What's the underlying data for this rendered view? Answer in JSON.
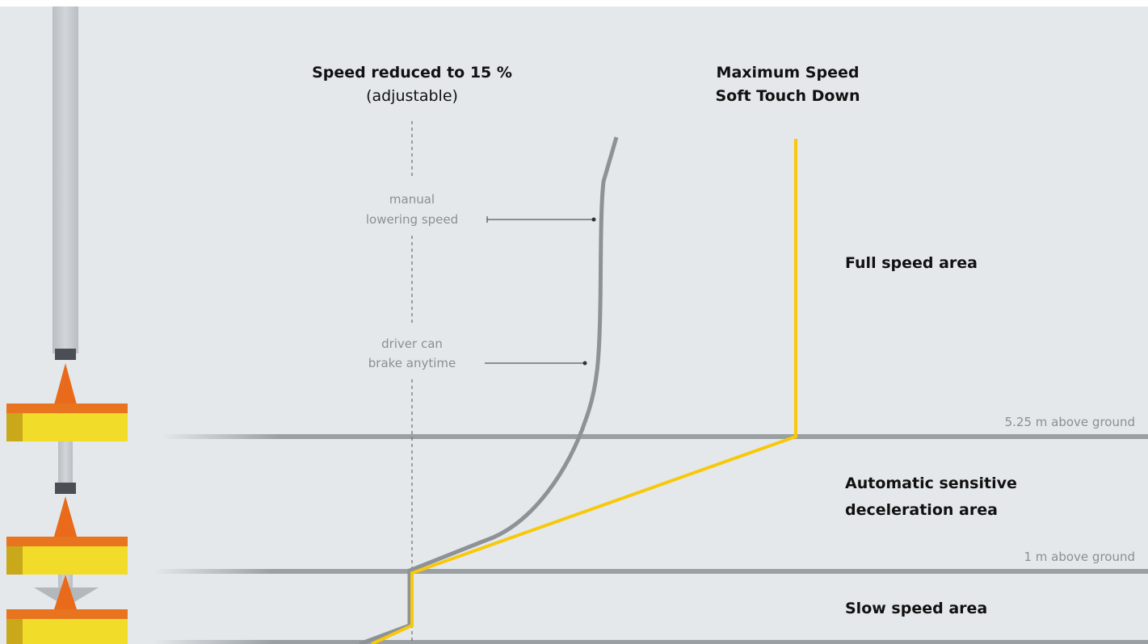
{
  "speed_reduced": {
    "title": "Speed reduced to 15 %",
    "subtitle": "(adjustable)"
  },
  "maximum_speed": {
    "lines": [
      "Maximum Speed",
      "Soft Touch Down"
    ]
  },
  "notes": [
    {
      "lines": [
        "manual",
        "lowering speed"
      ]
    },
    {
      "lines": [
        "driver can",
        "brake anytime"
      ]
    }
  ],
  "areas": [
    {
      "lines": [
        "Full speed area"
      ]
    },
    {
      "lines": [
        "Automatic sensitive",
        "deceleration area"
      ]
    },
    {
      "lines": [
        "Slow speed area"
      ]
    }
  ],
  "levels": [
    "5.25 m above ground",
    "1 m above ground"
  ]
}
